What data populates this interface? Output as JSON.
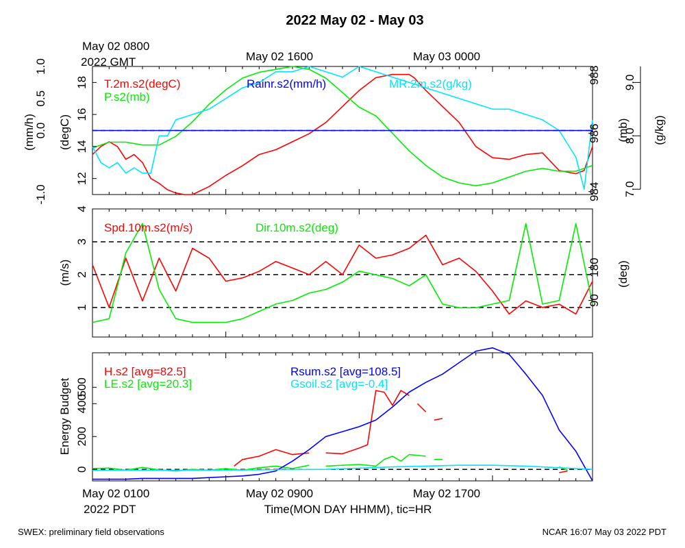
{
  "title": "2022 May 02 - May 03",
  "footer": {
    "left": "SWEX: preliminary field observations",
    "right": "NCAR 16:07 May 03 2022 PDT"
  },
  "top_axis": {
    "labels": [
      "May 02 1600",
      "May 03 0000"
    ],
    "start_label_line1": "May 02 0800",
    "start_label_line2": "2022 GMT"
  },
  "bottom_axis": {
    "labels": [
      "May 02 0900",
      "May 02 1700"
    ],
    "start_label_line1": "May 02 0100",
    "start_label_line2": "2022 PDT",
    "xlabel": "Time(MON DAY HHMM), tic=HR"
  },
  "colors": {
    "red": "#ff0000",
    "green": "#00ee00",
    "blue": "#0000ff",
    "cyan": "#00e5ff",
    "black": "#000000"
  },
  "chart_data": [
    {
      "type": "line",
      "panel": "top",
      "x_unit": "hours since 2022 May 02 0100 PDT",
      "xlim": [
        0,
        30
      ],
      "axes": {
        "left_outer": {
          "label": "(mm/h)",
          "ylim": [
            -1.0,
            1.0
          ],
          "ticks": [
            "-1.0",
            "0.0",
            "0.5",
            "1.0"
          ]
        },
        "left_inner": {
          "label": "(degC)",
          "ylim": [
            11,
            19
          ],
          "ticks": [
            "12",
            "14",
            "16",
            "18"
          ]
        },
        "right_inner": {
          "label": "(mb)",
          "ylim": [
            983.9,
            988.3
          ],
          "ticks": [
            "984",
            "986",
            "988"
          ]
        },
        "right_outer": {
          "label": "(g/kg)",
          "ylim": [
            6.9,
            9.3
          ],
          "ticks": [
            "7.0",
            "8.0",
            "9.0"
          ]
        }
      },
      "series": [
        {
          "name": "T.2m.s2(degC)",
          "color": "#ff0000",
          "axis": "left_inner",
          "x": [
            0,
            0.5,
            1,
            1.5,
            2,
            2.5,
            3,
            3.5,
            4,
            4.5,
            5,
            5.5,
            6,
            7,
            8,
            9,
            10,
            11,
            12,
            13,
            14,
            15,
            16,
            17,
            18,
            19,
            19.3,
            20,
            21,
            22,
            23,
            24,
            25,
            26,
            27,
            28,
            29,
            29.5,
            30
          ],
          "y": [
            13.5,
            14.0,
            14.3,
            14.0,
            13.2,
            13.5,
            13.0,
            12.0,
            11.7,
            11.3,
            11.1,
            11.0,
            11.0,
            11.5,
            12.2,
            12.8,
            13.5,
            13.8,
            14.3,
            14.8,
            15.5,
            16.5,
            17.5,
            18.3,
            18.5,
            18.5,
            18.3,
            17.5,
            16.5,
            15.5,
            14.0,
            13.3,
            13.2,
            13.5,
            13.6,
            12.5,
            12.3,
            12.5,
            14.0
          ]
        },
        {
          "name": "P.s2(mb)",
          "color": "#00ee00",
          "axis": "right_inner",
          "x": [
            0,
            1,
            2,
            3,
            4,
            5,
            6,
            7,
            8,
            9,
            10,
            11,
            12,
            13,
            14,
            15,
            16,
            17,
            18,
            19,
            20,
            21,
            22,
            23,
            24,
            25,
            26,
            27,
            28,
            29,
            30
          ],
          "y": [
            985.5,
            985.7,
            985.7,
            985.6,
            985.6,
            985.9,
            986.4,
            987.0,
            987.5,
            987.9,
            988.1,
            988.2,
            988.3,
            988.2,
            987.9,
            987.4,
            986.9,
            986.6,
            986.0,
            985.4,
            984.9,
            984.5,
            984.3,
            984.2,
            984.3,
            984.5,
            984.7,
            984.8,
            984.7,
            984.7,
            984.9
          ]
        },
        {
          "name": "MR.2m.s2(g/kg)",
          "color": "#00e5ff",
          "axis": "right_outer",
          "x": [
            0,
            0.5,
            1,
            1.5,
            2,
            2.5,
            3,
            3.5,
            4,
            4.5,
            5,
            6,
            7,
            8,
            9,
            10,
            11,
            12,
            13,
            14,
            15,
            16,
            17,
            18,
            19,
            20,
            21,
            22,
            23,
            24,
            25,
            26,
            27,
            28,
            29,
            29.5,
            30
          ],
          "y": [
            7.8,
            7.5,
            7.4,
            7.5,
            7.3,
            7.4,
            7.3,
            7.3,
            8.0,
            8.0,
            8.3,
            8.4,
            8.5,
            8.7,
            8.9,
            9.0,
            9.2,
            9.2,
            9.3,
            9.2,
            9.1,
            9.3,
            9.2,
            9.1,
            9.0,
            8.9,
            8.8,
            8.7,
            8.6,
            8.5,
            8.5,
            8.4,
            8.3,
            8.1,
            7.6,
            7.0,
            8.3
          ]
        },
        {
          "name": "Rainr.s2(mm/h)",
          "color": "#0000ff",
          "axis": "left_outer",
          "x": [
            0,
            30
          ],
          "y": [
            0,
            0
          ]
        }
      ],
      "reference_lines": [
        {
          "axis": "left_outer",
          "y": 0.0,
          "style": "dashed",
          "color": "#000000"
        }
      ]
    },
    {
      "type": "line",
      "panel": "middle",
      "x_unit": "hours since 2022 May 02 0100 PDT",
      "xlim": [
        0,
        30
      ],
      "axes": {
        "left": {
          "label": "(m/s)",
          "ylim": [
            0.1,
            4.0
          ],
          "ticks": [
            "1",
            "2",
            "3",
            "4"
          ]
        },
        "right": {
          "label": "(deg)",
          "ylim": [
            -10,
            340
          ],
          "ticks": [
            "90",
            "180"
          ]
        }
      },
      "series": [
        {
          "name": "Spd.10m.s2(m/s)",
          "color": "#ff0000",
          "axis": "left",
          "x": [
            0,
            1,
            2,
            3,
            4,
            5,
            6,
            7,
            8,
            9,
            10,
            11,
            12,
            13,
            14,
            15,
            16,
            17,
            18,
            19,
            20,
            21,
            22,
            23,
            24,
            25,
            26,
            27,
            28,
            29,
            30
          ],
          "y": [
            2.3,
            1.0,
            2.5,
            1.2,
            2.5,
            1.5,
            2.8,
            2.5,
            1.8,
            1.9,
            2.1,
            2.4,
            2.2,
            2.0,
            2.4,
            2.0,
            2.9,
            2.5,
            2.6,
            2.8,
            3.2,
            2.3,
            2.5,
            2.1,
            1.5,
            0.8,
            1.2,
            1.0,
            1.1,
            0.8,
            1.8
          ]
        },
        {
          "name": "Dir.10m.s2(deg)",
          "color": "#00ee00",
          "axis": "right",
          "x": [
            0,
            1,
            2,
            3,
            4,
            5,
            6,
            7,
            8,
            9,
            10,
            11,
            12,
            13,
            14,
            15,
            16,
            17,
            18,
            19,
            20,
            21,
            22,
            23,
            24,
            25,
            26,
            27,
            28,
            29,
            30
          ],
          "y": [
            30,
            40,
            220,
            300,
            120,
            40,
            30,
            30,
            30,
            40,
            60,
            80,
            90,
            110,
            120,
            140,
            170,
            160,
            150,
            130,
            160,
            80,
            70,
            70,
            80,
            90,
            300,
            80,
            90,
            300,
            80
          ]
        }
      ],
      "reference_lines": [
        {
          "axis": "left",
          "y": 1,
          "style": "dashed",
          "color": "#000000"
        },
        {
          "axis": "left",
          "y": 2,
          "style": "dashed",
          "color": "#000000"
        },
        {
          "axis": "left",
          "y": 3,
          "style": "dashed",
          "color": "#000000"
        }
      ]
    },
    {
      "type": "line",
      "panel": "bottom",
      "x_unit": "hours since 2022 May 02 0100 PDT",
      "xlim": [
        0,
        30
      ],
      "axes": {
        "left": {
          "label": "Energy Budget",
          "ylim": [
            -70,
            710
          ],
          "ticks": [
            "0",
            "200",
            "400",
            "500"
          ]
        }
      },
      "series": [
        {
          "name": "H.s2 [avg=82.5]",
          "color": "#ff0000",
          "segments": [
            {
              "x": [
                8.5,
                9,
                10,
                11,
                12,
                13
              ],
              "y": [
                20,
                60,
                80,
                120,
                90,
                100
              ]
            },
            {
              "x": [
                14,
                15,
                16,
                16.5,
                17,
                17.5,
                18,
                18.5,
                19
              ],
              "y": [
                100,
                95,
                130,
                150,
                480,
                470,
                390,
                480,
                450
              ]
            },
            {
              "x": [
                19.5,
                20
              ],
              "y": [
                400,
                350
              ]
            },
            {
              "x": [
                20.5,
                21
              ],
              "y": [
                300,
                310
              ]
            },
            {
              "x": [
                28,
                28.5
              ],
              "y": [
                -20,
                -10
              ]
            }
          ]
        },
        {
          "name": "LE.s2 [avg=20.3]",
          "color": "#00ee00",
          "segments": [
            {
              "x": [
                0,
                1,
                2,
                3,
                4,
                5,
                6,
                7,
                8,
                9,
                10,
                11,
                12,
                13
              ],
              "y": [
                5,
                8,
                -5,
                12,
                -3,
                -10,
                0,
                -5,
                5,
                -5,
                10,
                20,
                5,
                25
              ]
            },
            {
              "x": [
                14,
                16,
                17,
                17.5,
                18,
                18.5,
                19,
                20
              ],
              "y": [
                20,
                30,
                20,
                60,
                80,
                50,
                90,
                80
              ]
            },
            {
              "x": [
                20.5,
                21
              ],
              "y": [
                60,
                60
              ]
            },
            {
              "x": [
                28,
                28.5
              ],
              "y": [
                15,
                -5
              ]
            }
          ]
        },
        {
          "name": "Rsum.s2 [avg=108.5]",
          "color": "#0000ff",
          "x": [
            0,
            1,
            2,
            3,
            4,
            5,
            6,
            7,
            8,
            9,
            10,
            11,
            12,
            13,
            14,
            15,
            16,
            17,
            18,
            19,
            20,
            21,
            22,
            23,
            24,
            25,
            26,
            27,
            28,
            29,
            30
          ],
          "y": [
            -60,
            -60,
            -60,
            -55,
            -55,
            -55,
            -55,
            -50,
            -45,
            -40,
            -30,
            -10,
            50,
            120,
            200,
            230,
            260,
            300,
            380,
            470,
            530,
            580,
            650,
            720,
            740,
            700,
            580,
            450,
            240,
            110,
            -70
          ]
        },
        {
          "name": "Gsoil.s2 [avg=-0.4]",
          "color": "#00e5ff",
          "x": [
            0,
            5,
            10,
            14,
            18,
            20,
            22,
            24,
            26,
            28,
            30
          ],
          "y": [
            -5,
            -5,
            -3,
            0,
            15,
            20,
            25,
            25,
            20,
            10,
            0
          ]
        }
      ],
      "reference_lines": [
        {
          "axis": "left",
          "y": 0,
          "style": "dashed",
          "color": "#000000"
        }
      ]
    }
  ]
}
